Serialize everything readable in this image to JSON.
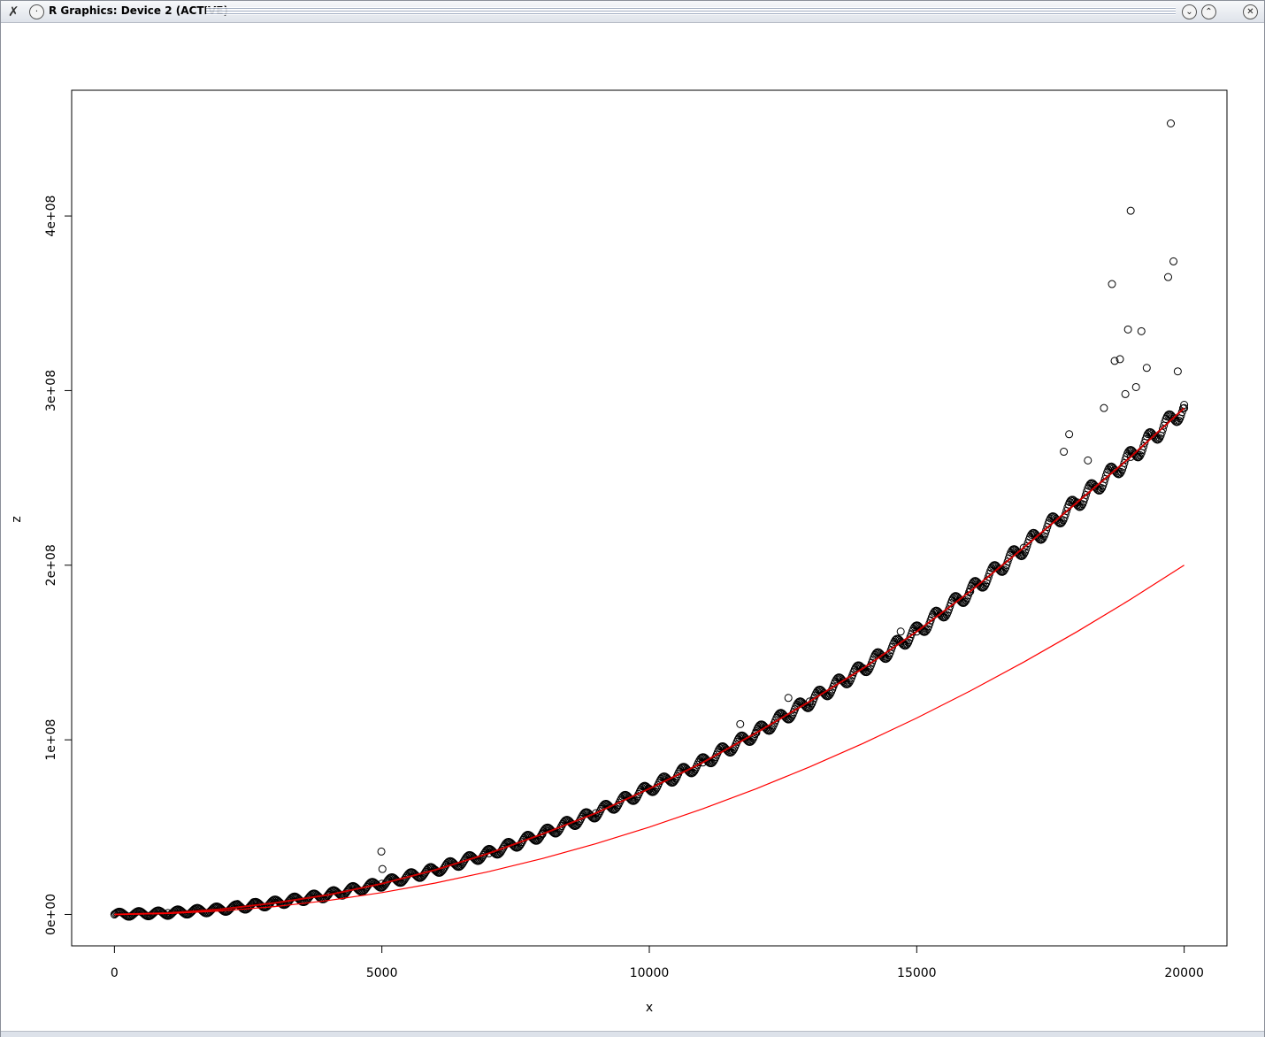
{
  "window": {
    "title": "R Graphics: Device 2 (ACTIVE)",
    "menu_icon": "x-logo-icon",
    "buttons": [
      {
        "name": "sticky-icon"
      },
      {
        "name": "minimize-icon"
      },
      {
        "name": "maximize-icon"
      },
      {
        "name": "close-icon"
      }
    ]
  },
  "chart_data": {
    "type": "scatter",
    "xlabel": "x",
    "ylabel": "z",
    "xlim": [
      -800,
      20800
    ],
    "ylim": [
      -18000000,
      472000000
    ],
    "x_ticks": [
      0,
      5000,
      10000,
      15000,
      20000
    ],
    "x_tick_labels": [
      "0",
      "5000",
      "10000",
      "15000",
      "20000"
    ],
    "y_ticks": [
      0,
      100000000,
      200000000,
      300000000,
      400000000
    ],
    "y_tick_labels": [
      "0e+00",
      "1e+08",
      "2e+08",
      "3e+08",
      "4e+08"
    ],
    "grid": false,
    "series": [
      {
        "kind": "points",
        "marker": "open-circle",
        "color": "#000000",
        "x": [
          0,
          1000,
          2000,
          3000,
          4000,
          5000,
          6000,
          7000,
          8000,
          9000,
          10000,
          11000,
          12000,
          13000,
          14000,
          15000,
          16000,
          17000,
          18000,
          19000,
          20000
        ],
        "y": [
          0,
          820000,
          3000000,
          6600000,
          11200000,
          17600000,
          25500000,
          35000000,
          46000000,
          58000000,
          72000000,
          87000000,
          104000000,
          122000000,
          141000000,
          162000000,
          185000000,
          210000000,
          236000000,
          262000000,
          290000000
        ]
      },
      {
        "kind": "outliers",
        "marker": "open-circle",
        "color": "#000000",
        "x": [
          2300,
          2600,
          4990,
          5010,
          11700,
          12600,
          14700,
          17750,
          17850,
          18200,
          18650,
          18700,
          18800,
          18950,
          19000,
          19200,
          19300,
          19700,
          19750,
          19800,
          19880,
          18500,
          18900,
          19100
        ],
        "y": [
          6000000,
          7000000,
          36000000,
          26000000,
          109000000,
          124000000,
          162000000,
          265000000,
          275000000,
          260000000,
          361000000,
          317000000,
          318000000,
          335000000,
          403000000,
          334000000,
          313000000,
          365000000,
          453000000,
          374000000,
          311000000,
          290000000,
          298000000,
          302000000
        ]
      },
      {
        "kind": "fit-line",
        "color": "#cc0000",
        "x": [
          0,
          1000,
          2000,
          3000,
          4000,
          5000,
          6000,
          7000,
          8000,
          9000,
          10000,
          11000,
          12000,
          13000,
          14000,
          15000,
          16000,
          17000,
          18000,
          19000,
          20000
        ],
        "y": [
          0,
          820000,
          3000000,
          6600000,
          11200000,
          17600000,
          25500000,
          35000000,
          46000000,
          58000000,
          72000000,
          87000000,
          104000000,
          122000000,
          141000000,
          162000000,
          185000000,
          210000000,
          236000000,
          262000000,
          290000000
        ]
      },
      {
        "kind": "line",
        "color": "#ff0000",
        "x": [
          0,
          1000,
          2000,
          3000,
          4000,
          5000,
          6000,
          7000,
          8000,
          9000,
          10000,
          11000,
          12000,
          13000,
          14000,
          15000,
          16000,
          17000,
          18000,
          19000,
          20000
        ],
        "y": [
          0,
          500000,
          2000000,
          4500000,
          8000000,
          12500000,
          18000000,
          24500000,
          32000000,
          40500000,
          50000000,
          60500000,
          72000000,
          84500000,
          98000000,
          112500000,
          128000000,
          144500000,
          162000000,
          180500000,
          200000000
        ]
      }
    ]
  }
}
